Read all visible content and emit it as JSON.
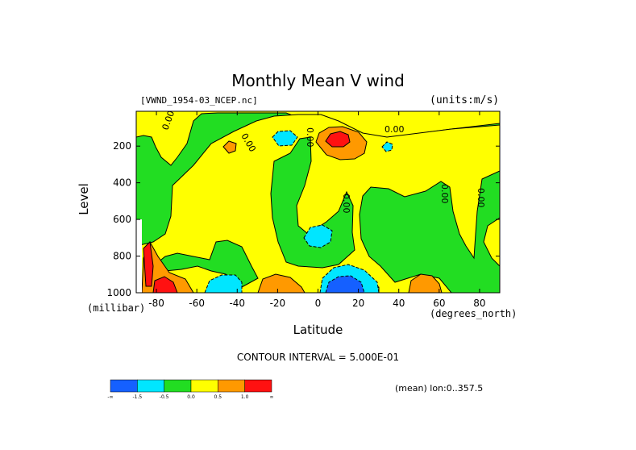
{
  "chart_data": {
    "type": "heatmap",
    "title": "Monthly Mean V wind",
    "source_file": "[VWND_1954-03_NCEP.nc]",
    "units": "(units:m/s)",
    "xlabel": "Latitude",
    "ylabel": "Level",
    "x_unit": "(degrees_north)",
    "y_unit": "(millibar)",
    "xlim": [
      -90,
      90
    ],
    "ylim": [
      1000,
      10
    ],
    "x_ticks": [
      "-80",
      "-60",
      "-40",
      "-20",
      "0",
      "20",
      "40",
      "60",
      "80"
    ],
    "y_ticks": [
      "200",
      "400",
      "600",
      "800",
      "1000"
    ],
    "contour_interval": "CONTOUR INTERVAL = 5.000E-01",
    "footer": "(mean) lon:0..357.5",
    "contour_labels": [
      "0.00",
      "0.00",
      "0.00",
      "0.00",
      "0.00",
      "0.00",
      "0.00"
    ],
    "colorbar": {
      "colors": [
        "#1560ff",
        "#00e6ff",
        "#22dd22",
        "#ffff00",
        "#ff9900",
        "#ff1111"
      ],
      "labels": [
        "-∞",
        "-1.5",
        "-0.5",
        "0.0",
        "0.5",
        "1.0",
        "∞"
      ]
    },
    "regions": [
      {
        "name": "base-green",
        "value": -0.25,
        "color": "#22dd22"
      },
      {
        "name": "yellow-positive-band",
        "value": 0.25,
        "color": "#ffff00"
      },
      {
        "name": "orange-jet-core",
        "value": 0.75,
        "color": "#ff9900"
      },
      {
        "name": "red-jet-peak",
        "value": 1.25,
        "color": "#ff1111"
      },
      {
        "name": "cyan-negative-cells",
        "value": -0.75,
        "color": "#00e6ff"
      },
      {
        "name": "blue-near-surface-minimum",
        "value": -1.75,
        "color": "#1560ff"
      }
    ]
  }
}
